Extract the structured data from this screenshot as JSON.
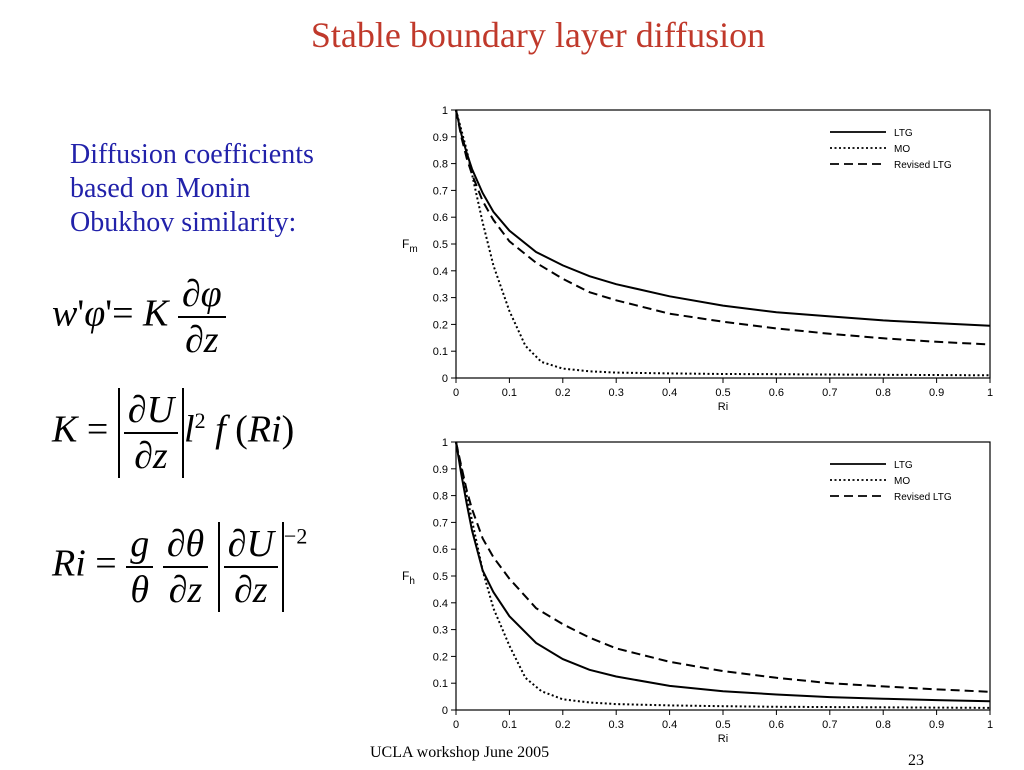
{
  "title": "Stable boundary layer diffusion",
  "subtitle_lines": [
    "Diffusion coefficients",
    "based on Monin",
    "Obukhov similarity:"
  ],
  "equations": {
    "flux": "w'φ' = K ∂φ/∂z",
    "k": "K = |∂U/∂z| l² f(Ri)",
    "ri": "Ri = (g/θ)(∂θ/∂z)|∂U/∂z|⁻²"
  },
  "footer": {
    "left": "UCLA workshop June 2005",
    "page": "23"
  },
  "chart_data": [
    {
      "type": "line",
      "ylabel": "F_m",
      "xlabel": "Ri",
      "xlim": [
        0,
        1
      ],
      "ylim": [
        0,
        1
      ],
      "xticks": [
        "0",
        "0.1",
        "0.2",
        "0.3",
        "0.4",
        "0.5",
        "0.6",
        "0.7",
        "0.8",
        "0.9",
        "1"
      ],
      "yticks": [
        "0",
        "0.1",
        "0.2",
        "0.3",
        "0.4",
        "0.5",
        "0.6",
        "0.7",
        "0.8",
        "0.9",
        "1"
      ],
      "legend_position": "top-right",
      "series": [
        {
          "name": "LTG",
          "style": "solid",
          "x": [
            0,
            0.01,
            0.02,
            0.03,
            0.05,
            0.07,
            0.1,
            0.15,
            0.2,
            0.25,
            0.3,
            0.4,
            0.5,
            0.6,
            0.7,
            0.8,
            0.9,
            1.0
          ],
          "y": [
            1,
            0.91,
            0.84,
            0.78,
            0.69,
            0.62,
            0.55,
            0.47,
            0.42,
            0.38,
            0.35,
            0.305,
            0.27,
            0.245,
            0.23,
            0.215,
            0.205,
            0.195
          ]
        },
        {
          "name": "MO",
          "style": "dotted",
          "x": [
            0,
            0.02,
            0.05,
            0.07,
            0.1,
            0.13,
            0.16,
            0.2,
            0.25,
            0.3,
            0.4,
            0.5,
            0.6,
            0.8,
            1.0
          ],
          "y": [
            1,
            0.85,
            0.58,
            0.42,
            0.25,
            0.12,
            0.06,
            0.035,
            0.025,
            0.02,
            0.017,
            0.015,
            0.014,
            0.012,
            0.01
          ]
        },
        {
          "name": "Revised LTG",
          "style": "dashed",
          "x": [
            0,
            0.01,
            0.02,
            0.03,
            0.05,
            0.07,
            0.1,
            0.15,
            0.2,
            0.25,
            0.3,
            0.4,
            0.5,
            0.6,
            0.7,
            0.8,
            0.9,
            1.0
          ],
          "y": [
            1,
            0.9,
            0.82,
            0.76,
            0.66,
            0.59,
            0.51,
            0.43,
            0.37,
            0.32,
            0.29,
            0.24,
            0.21,
            0.185,
            0.165,
            0.148,
            0.135,
            0.125
          ]
        }
      ]
    },
    {
      "type": "line",
      "ylabel": "F_h",
      "xlabel": "Ri",
      "xlim": [
        0,
        1
      ],
      "ylim": [
        0,
        1
      ],
      "xticks": [
        "0",
        "0.1",
        "0.2",
        "0.3",
        "0.4",
        "0.5",
        "0.6",
        "0.7",
        "0.8",
        "0.9",
        "1"
      ],
      "yticks": [
        "0",
        "0.1",
        "0.2",
        "0.3",
        "0.4",
        "0.5",
        "0.6",
        "0.7",
        "0.8",
        "0.9",
        "1"
      ],
      "legend_position": "top-right",
      "series": [
        {
          "name": "LTG",
          "style": "solid",
          "x": [
            0,
            0.01,
            0.02,
            0.03,
            0.05,
            0.07,
            0.1,
            0.15,
            0.2,
            0.25,
            0.3,
            0.4,
            0.5,
            0.6,
            0.7,
            0.8,
            0.9,
            1.0
          ],
          "y": [
            1,
            0.88,
            0.77,
            0.67,
            0.52,
            0.44,
            0.35,
            0.25,
            0.19,
            0.15,
            0.125,
            0.09,
            0.07,
            0.058,
            0.048,
            0.042,
            0.037,
            0.033
          ]
        },
        {
          "name": "MO",
          "style": "dotted",
          "x": [
            0,
            0.02,
            0.05,
            0.07,
            0.1,
            0.13,
            0.16,
            0.2,
            0.25,
            0.3,
            0.4,
            0.5,
            0.6,
            0.8,
            1.0
          ],
          "y": [
            1,
            0.8,
            0.52,
            0.38,
            0.24,
            0.12,
            0.07,
            0.04,
            0.028,
            0.022,
            0.017,
            0.014,
            0.012,
            0.01,
            0.008
          ]
        },
        {
          "name": "Revised LTG",
          "style": "dashed",
          "x": [
            0,
            0.01,
            0.02,
            0.03,
            0.05,
            0.07,
            0.1,
            0.15,
            0.2,
            0.25,
            0.3,
            0.4,
            0.5,
            0.6,
            0.7,
            0.8,
            0.9,
            1.0
          ],
          "y": [
            1,
            0.91,
            0.82,
            0.75,
            0.64,
            0.57,
            0.49,
            0.38,
            0.32,
            0.27,
            0.23,
            0.18,
            0.145,
            0.12,
            0.1,
            0.088,
            0.077,
            0.068
          ]
        }
      ]
    }
  ]
}
